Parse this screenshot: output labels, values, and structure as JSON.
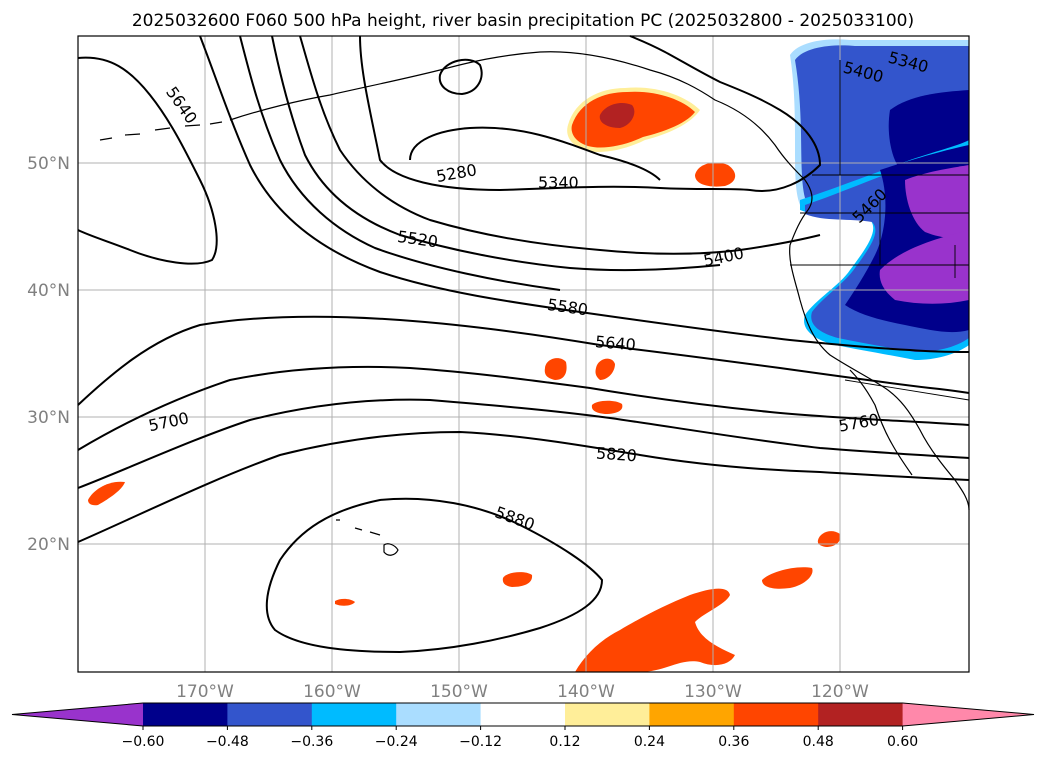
{
  "title": "2025032600 F060 500 hPa height, river basin precipitation PC (2025032800 - 2025033100)",
  "lon_ticks": [
    "170°W",
    "160°W",
    "150°W",
    "140°W",
    "130°W",
    "120°W"
  ],
  "lat_ticks": [
    "50°N",
    "40°N",
    "30°N",
    "20°N"
  ],
  "colorbar": {
    "tick_labels": [
      "−0.60",
      "−0.48",
      "−0.36",
      "−0.24",
      "−0.12",
      "0.12",
      "0.24",
      "0.36",
      "0.48",
      "0.60"
    ],
    "colors": [
      "#9933cc",
      "#00008b",
      "#3355cc",
      "#00bbff",
      "#aaddff",
      "#ffffff",
      "#ffee99",
      "#ffa500",
      "#ff4500",
      "#b22222",
      "#ff88aa"
    ]
  },
  "contour_labels": [
    "5640",
    "5280",
    "5340",
    "5520",
    "5400",
    "5580",
    "5640",
    "5700",
    "5760",
    "5820",
    "5880",
    "5400",
    "5340",
    "5460"
  ],
  "colors": {
    "ocean_land_bg": "#ffffff",
    "grid": "#b0b0b0",
    "contour": "#000000"
  }
}
